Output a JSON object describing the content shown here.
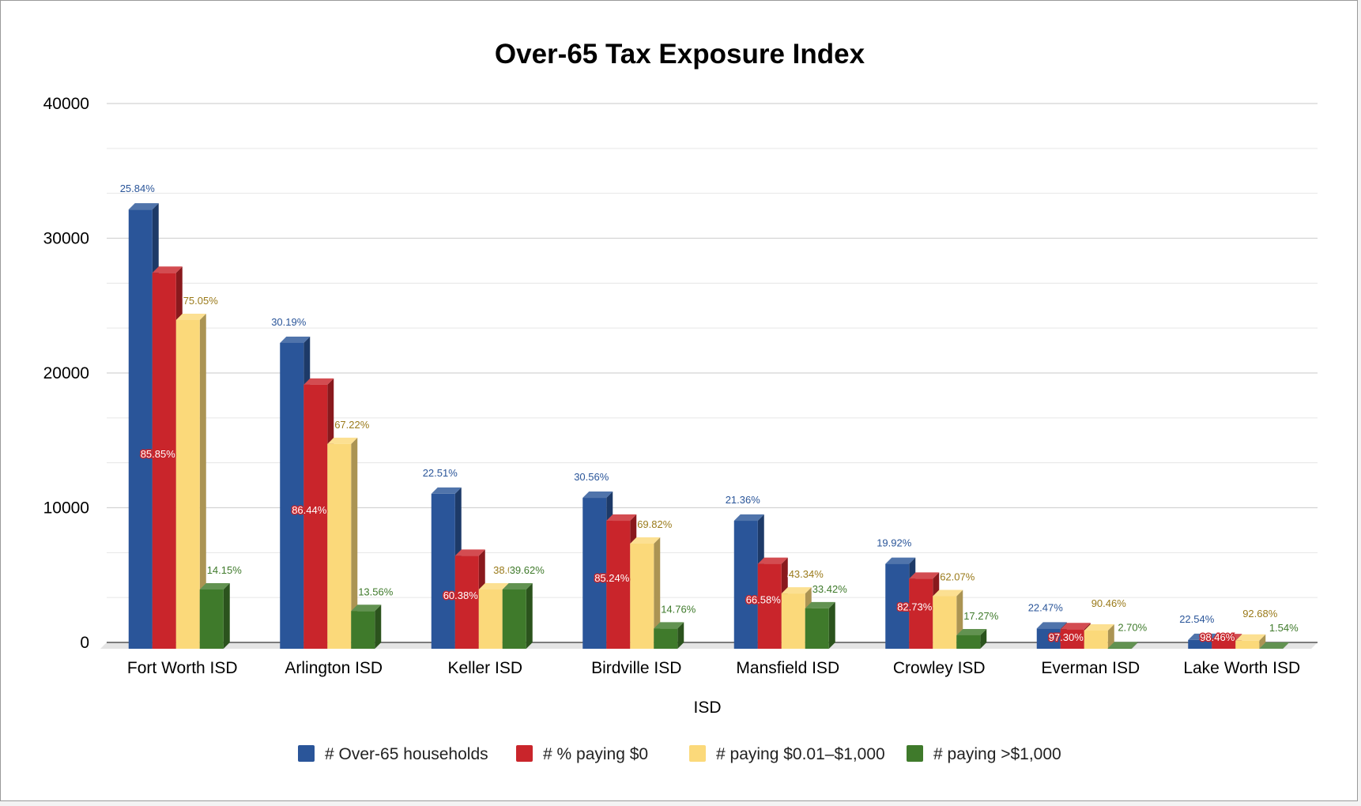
{
  "chart_data": {
    "type": "bar",
    "title": "Over-65 Tax Exposure Index",
    "xlabel": "ISD",
    "ylabel": "",
    "ylim": [
      0,
      40000
    ],
    "yticks": [
      "0",
      "10000",
      "20000",
      "30000",
      "40000"
    ],
    "grid": true,
    "legend_position": "bottom",
    "style": "3d-column",
    "categories": [
      "Fort Worth ISD",
      "Arlington ISD",
      "Keller ISD",
      "Birdville ISD",
      "Mansfield ISD",
      "Crowley ISD",
      "Everman ISD",
      "Lake Worth ISD"
    ],
    "series": [
      {
        "name": "# Over-65 households",
        "color": "#2a5599",
        "values": [
          32600,
          22700,
          11500,
          11200,
          9500,
          6300,
          1500,
          650
        ],
        "labels": [
          "25.84%",
          "30.19%",
          "22.51%",
          "30.56%",
          "21.36%",
          "19.92%",
          "22.47%",
          "22.54%"
        ]
      },
      {
        "name": "# % paying $0",
        "color": "#c9252b",
        "values": [
          27900,
          19600,
          6900,
          9500,
          6300,
          5200,
          1450,
          640
        ],
        "labels": [
          "85.85%",
          "86.44%",
          "60.38%",
          "85.24%",
          "66.58%",
          "82.73%",
          "97.30%",
          "98.46%"
        ]
      },
      {
        "name": "# paying $0.01–$1,000",
        "color": "#fbd97a",
        "values": [
          24400,
          15200,
          4400,
          7800,
          4100,
          3900,
          1350,
          600
        ],
        "labels": [
          "75.05%",
          "67.22%",
          "38.0",
          "69.82%",
          "43.34%",
          "62.07%",
          "90.46%",
          "92.68%"
        ]
      },
      {
        "name": "# paying >$1,000",
        "color": "#3f7a2b",
        "values": [
          4400,
          2800,
          4400,
          1500,
          3000,
          1000,
          40,
          10
        ],
        "labels": [
          "14.15%",
          "13.56%",
          "39.62%",
          "14.76%",
          "33.42%",
          "17.27%",
          "2.70%",
          "1.54%"
        ]
      }
    ]
  }
}
